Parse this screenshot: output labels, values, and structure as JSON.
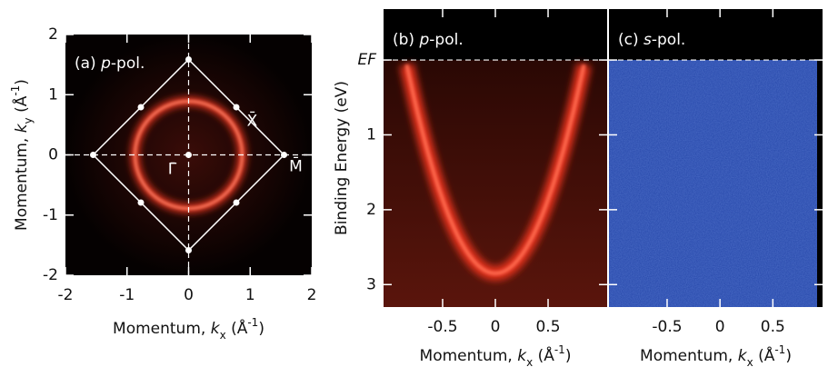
{
  "chart_data": [
    {
      "type": "image",
      "title": [
        "(a) ",
        "p",
        "-pol."
      ],
      "x_label": [
        "Momentum, ",
        "k",
        "x",
        " (Å",
        "-1",
        ")"
      ],
      "y_label": [
        "Momentum, ",
        "k",
        "y",
        " (Å",
        "-1",
        ")"
      ],
      "xlim": [
        -2,
        2
      ],
      "ylim": [
        -2,
        2
      ],
      "xticks": [
        -2,
        -1,
        0,
        1,
        2
      ],
      "yticks": [
        -2,
        -1,
        0,
        1,
        2
      ],
      "annotations": [
        "X̄",
        "M̄",
        "Γ̄"
      ]
    },
    {
      "type": "image",
      "title": [
        "(b) ",
        "p",
        "-pol."
      ],
      "x_label": [
        "Momentum, ",
        "k",
        "x",
        " (Å",
        "-1",
        ")"
      ],
      "y_label": [
        "Binding Energy (eV)"
      ],
      "xlim": [
        -1.06,
        1.06
      ],
      "ylim": [
        3.3,
        -0.68
      ],
      "xticks": [
        -0.5,
        0,
        0.5
      ],
      "yticks": [
        {
          "value": 0,
          "label": "EF"
        },
        1,
        2,
        3
      ]
    },
    {
      "type": "image",
      "title": [
        "(c) ",
        "s",
        "-pol."
      ],
      "x_label": [
        "Momentum, ",
        "k",
        "x",
        " (Å",
        "-1",
        ")"
      ],
      "xlim": [
        -1.05,
        0.97
      ],
      "ylim": [
        3.3,
        -0.68
      ],
      "xticks": [
        -0.5,
        0,
        0.5
      ]
    }
  ]
}
